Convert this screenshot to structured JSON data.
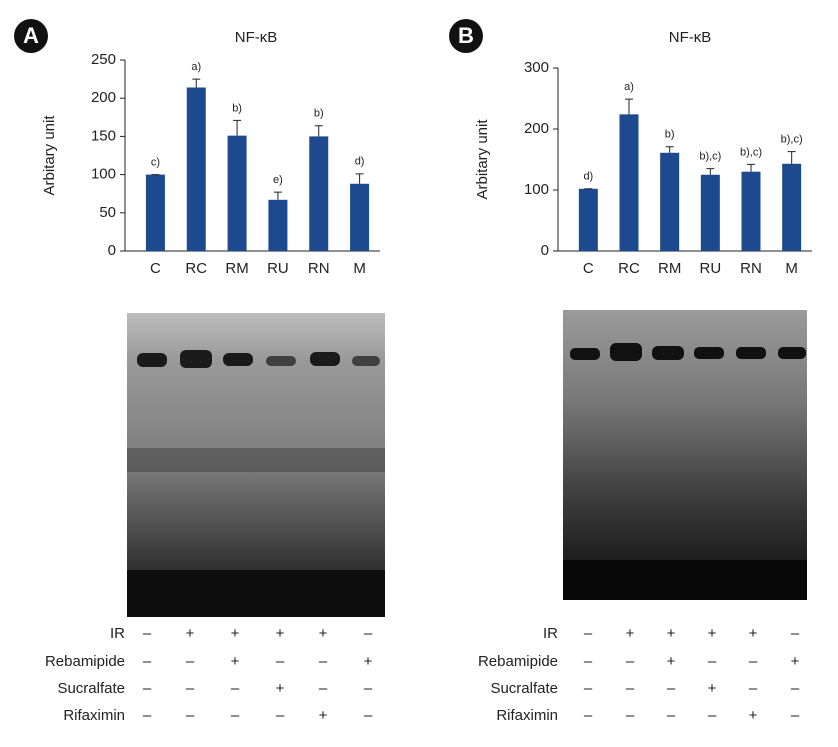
{
  "chart_data": [
    {
      "type": "bar",
      "panel": "A",
      "title": "NF-κB",
      "y_label": "Arbitary unit",
      "categories": [
        "C",
        "RC",
        "RM",
        "RU",
        "RN",
        "M"
      ],
      "values": [
        100,
        214,
        151,
        67,
        150,
        88
      ],
      "errors": [
        0,
        11,
        20,
        10,
        14,
        13
      ],
      "annotations": [
        "c)",
        "a)",
        "b)",
        "e)",
        "b)",
        "d)"
      ],
      "color": "#1d4a8f",
      "ylim": [
        0,
        250
      ],
      "yticks": [
        0,
        50,
        100,
        150,
        200,
        250
      ]
    },
    {
      "type": "bar",
      "panel": "B",
      "title": "NF-κB",
      "y_label": "Arbitary unit",
      "categories": [
        "C",
        "RC",
        "RM",
        "RU",
        "RN",
        "M"
      ],
      "values": [
        102,
        224,
        161,
        125,
        130,
        143
      ],
      "errors": [
        0,
        25,
        10,
        10,
        12,
        20
      ],
      "annotations": [
        "d)",
        "a)",
        "b)",
        "b),c)",
        "b),c)",
        "b),c)"
      ],
      "color": "#1d4a8f",
      "ylim": [
        0,
        300
      ],
      "yticks": [
        0,
        100,
        200,
        300
      ]
    }
  ],
  "tables": [
    {
      "rows": [
        {
          "label": "IR",
          "cells": [
            "–",
            "+",
            "+",
            "+",
            "+",
            "–"
          ]
        },
        {
          "label": "Rebamipide",
          "cells": [
            "–",
            "–",
            "+",
            "–",
            "–",
            "+"
          ]
        },
        {
          "label": "Sucralfate",
          "cells": [
            "–",
            "–",
            "–",
            "+",
            "–",
            "–"
          ]
        },
        {
          "label": "Rifaximin",
          "cells": [
            "–",
            "–",
            "–",
            "–",
            "+",
            "–"
          ]
        }
      ]
    },
    {
      "rows": [
        {
          "label": "IR",
          "cells": [
            "–",
            "+",
            "+",
            "+",
            "+",
            "–"
          ]
        },
        {
          "label": "Rebamipide",
          "cells": [
            "–",
            "–",
            "+",
            "–",
            "–",
            "+"
          ]
        },
        {
          "label": "Sucralfate",
          "cells": [
            "–",
            "–",
            "–",
            "+",
            "–",
            "–"
          ]
        },
        {
          "label": "Rifaximin",
          "cells": [
            "–",
            "–",
            "–",
            "–",
            "+",
            "–"
          ]
        }
      ]
    }
  ]
}
